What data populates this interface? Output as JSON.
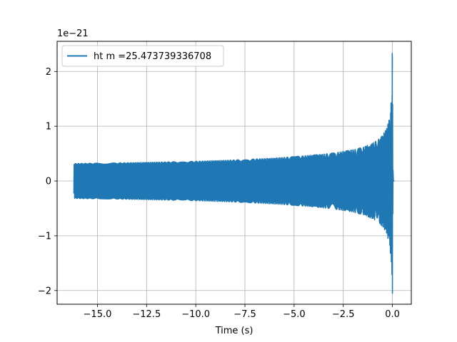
{
  "chart_data": {
    "type": "line",
    "xlabel": "Time (s)",
    "ylabel": "",
    "y_offset_text": "1e−21",
    "xlim": [
      -17.05,
      0.96
    ],
    "ylim": [
      -2.25,
      2.55
    ],
    "grid": true,
    "legend_position": "upper left",
    "x_ticks": [
      -15.0,
      -12.5,
      -10.0,
      -7.5,
      -5.0,
      -2.5,
      0.0
    ],
    "x_tick_labels": [
      "−15.0",
      "−12.5",
      "−10.0",
      "−7.5",
      "−5.0",
      "−2.5",
      "0.0"
    ],
    "y_ticks": [
      -2,
      -1,
      0,
      1,
      2
    ],
    "y_tick_labels": [
      "−2",
      "−1",
      "0",
      "1",
      "2"
    ],
    "series": [
      {
        "name": "ht m =25.473739336708",
        "color": "#1f77b4",
        "t_start": -16.2,
        "t_merger": 0.0,
        "t_end": 0.1,
        "envelope": {
          "t": [
            -16.2,
            -14.0,
            -12.0,
            -10.0,
            -8.0,
            -6.0,
            -5.0,
            -4.0,
            -3.0,
            -2.0,
            -1.5,
            -1.0,
            -0.6,
            -0.3,
            -0.15,
            -0.05,
            0.0
          ],
          "amp": [
            0.32,
            0.33,
            0.345,
            0.36,
            0.385,
            0.42,
            0.445,
            0.475,
            0.51,
            0.57,
            0.615,
            0.69,
            0.79,
            0.95,
            1.15,
            1.5,
            2.3
          ]
        },
        "peak_max": 2.33,
        "peak_min": -2.05
      }
    ]
  }
}
